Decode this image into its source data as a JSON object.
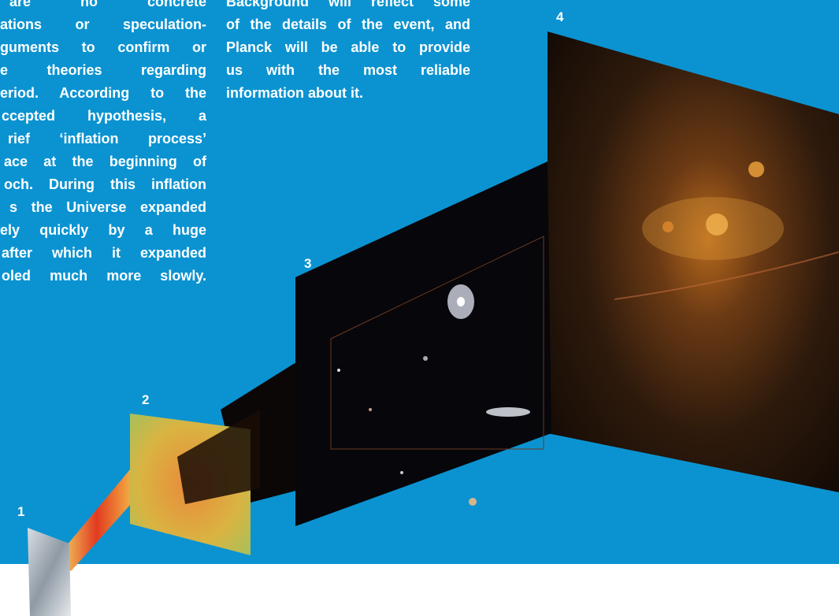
{
  "left_column": {
    "lines": [
      "are no concrete",
      "ations or speculation-",
      "guments to confirm or",
      "e theories regarding",
      "eriod. According to the",
      "ccepted hypothesis, a",
      "rief ‘inflation process’",
      "ace at the beginning of",
      "och. During this inflation",
      "s the Universe expanded",
      "ely quickly by a huge",
      "after which it expanded",
      "oled much more slowly."
    ]
  },
  "right_column": {
    "lines": [
      "Background will reflect some",
      "of the details of the event, and",
      "Planck will be able to provide",
      "us with the most reliable",
      "information about it."
    ]
  },
  "figure": {
    "labels": [
      "1",
      "2",
      "3",
      "4"
    ]
  }
}
